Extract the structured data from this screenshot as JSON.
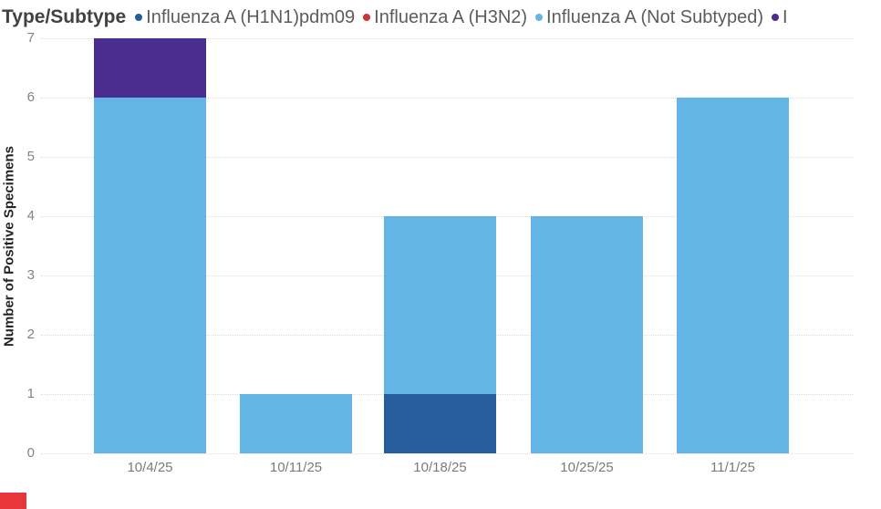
{
  "legend": {
    "title": "Type/Subtype",
    "items": [
      {
        "label": "Influenza A (H1N1)pdm09",
        "color": "#275d9d"
      },
      {
        "label": "Influenza A (H3N2)",
        "color": "#c93634"
      },
      {
        "label": "Influenza A (Not Subtyped)",
        "color": "#63b5e5"
      },
      {
        "label": "I",
        "color": "#4a2e8f"
      }
    ]
  },
  "y_axis": {
    "title": "Number of Positive Specimens",
    "ticks": [
      0,
      1,
      2,
      3,
      4,
      5,
      6,
      7
    ]
  },
  "x_axis": {
    "categories": [
      "10/4/25",
      "10/11/25",
      "10/18/25",
      "10/25/25",
      "11/1/25"
    ]
  },
  "chart_data": {
    "type": "bar",
    "stacked": true,
    "title": "Type/Subtype",
    "categories": [
      "10/4/25",
      "10/11/25",
      "10/18/25",
      "10/25/25",
      "11/1/25"
    ],
    "series": [
      {
        "name": "Influenza A (H1N1)pdm09",
        "color": "#275d9d",
        "values": [
          0,
          0,
          1,
          0,
          0
        ]
      },
      {
        "name": "Influenza A (H3N2)",
        "color": "#c93634",
        "values": [
          0,
          0,
          0,
          0,
          0
        ]
      },
      {
        "name": "Influenza A (Not Subtyped)",
        "color": "#63b5e5",
        "values": [
          6,
          1,
          3,
          4,
          6
        ]
      },
      {
        "name": "I",
        "color": "#4a2e8f",
        "values": [
          1,
          0,
          0,
          0,
          0
        ]
      }
    ],
    "totals": [
      7,
      1,
      4,
      4,
      6
    ],
    "xlabel": "",
    "ylabel": "Number of Positive Specimens",
    "ylim": [
      0,
      7
    ],
    "yticks": [
      0,
      1,
      2,
      3,
      4,
      5,
      6,
      7
    ],
    "grid": "horizontal-dotted",
    "legend_position": "top"
  },
  "marker": {
    "color": "#e8363c"
  }
}
